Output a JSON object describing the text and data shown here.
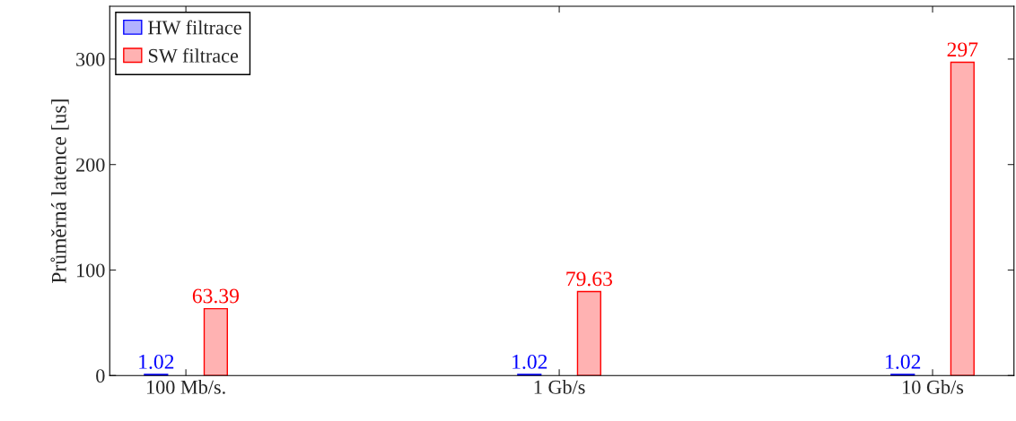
{
  "chart_data": {
    "type": "bar",
    "ylabel": "Průměrná latence [us]",
    "categories": [
      "100 Mb/s.",
      "1 Gb/s",
      "10 Gb/s"
    ],
    "series": [
      {
        "name": "HW filtrace",
        "color": "#0000ff",
        "values": [
          1.02,
          1.02,
          1.02
        ]
      },
      {
        "name": "SW filtrace",
        "color": "#ff0000",
        "values": [
          63.39,
          79.63,
          297
        ]
      }
    ],
    "ylim": [
      0,
      350
    ],
    "yticks": [
      0,
      100,
      200,
      300
    ],
    "data_labels": true,
    "legend": "top left",
    "grid": false
  }
}
